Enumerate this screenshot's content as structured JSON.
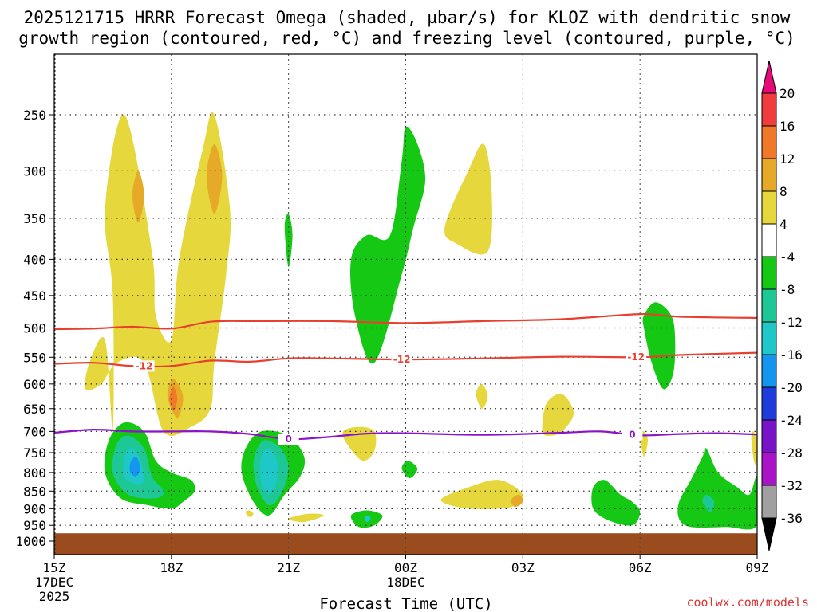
{
  "chart_data": {
    "type": "contour",
    "title_line1": "2025121715 HRRR Forecast Omega (shaded, µbar/s) for KLOZ with dendritic snow",
    "title_line2": "growth region (contoured, red, °C) and freezing level (contoured, purple, °C)",
    "xlabel": "Forecast Time (UTC)",
    "credit": "coolwx.com/models",
    "x_range": [
      15,
      33
    ],
    "y_range_hpa": [
      200,
      1000
    ],
    "y_ticks": [
      250,
      300,
      350,
      400,
      450,
      500,
      550,
      600,
      650,
      700,
      750,
      800,
      850,
      900,
      950,
      1000
    ],
    "x_ticks": [
      {
        "hour": 15,
        "label": "15Z",
        "sub1": "17DEC",
        "sub2": "2025"
      },
      {
        "hour": 18,
        "label": "18Z",
        "sub1": "",
        "sub2": ""
      },
      {
        "hour": 21,
        "label": "21Z",
        "sub1": "",
        "sub2": ""
      },
      {
        "hour": 24,
        "label": "00Z",
        "sub1": "18DEC",
        "sub2": ""
      },
      {
        "hour": 27,
        "label": "03Z",
        "sub1": "",
        "sub2": ""
      },
      {
        "hour": 30,
        "label": "06Z",
        "sub1": "",
        "sub2": ""
      },
      {
        "hour": 33,
        "label": "09Z",
        "sub1": "",
        "sub2": ""
      }
    ],
    "colorbar": {
      "levels": [
        "20",
        "16",
        "12",
        "8",
        "4",
        "-4",
        "-8",
        "-12",
        "-16",
        "-20",
        "-24",
        "-28",
        "-32",
        "-36"
      ],
      "colors": [
        "#e60a78",
        "#f03c3c",
        "#f07828",
        "#e6aa28",
        "#e6d83c",
        "#ffffff",
        "#14c814",
        "#1ec896",
        "#1ec8c8",
        "#1496f0",
        "#1e3cdc",
        "#7814c8",
        "#aa14c8",
        "#a0a0a0",
        "#000000"
      ]
    },
    "contours": {
      "dgz_warm": {
        "name": "DGZ top",
        "label": "",
        "color": "#e84030",
        "hours": [
          15,
          16,
          17,
          18,
          19,
          20,
          22,
          24,
          26,
          28,
          30,
          31,
          33
        ],
        "hpa": [
          502,
          501,
          498,
          501,
          490,
          489,
          489,
          492,
          489,
          486,
          478,
          482,
          484
        ]
      },
      "dgz_cold": {
        "name": "DGZ bottom",
        "label": "-12",
        "color": "#e84030",
        "hours": [
          15,
          16,
          17,
          18,
          19,
          20,
          21,
          22,
          24,
          26,
          28,
          30,
          31,
          33
        ],
        "hpa": [
          562,
          560,
          566,
          566,
          556,
          558,
          552,
          552,
          554,
          552,
          549,
          550,
          546,
          542
        ]
      },
      "freezing_level": {
        "name": "Freezing level",
        "label": "0",
        "color": "#8c14c8",
        "hours": [
          15,
          16,
          17,
          18,
          19,
          20,
          21,
          22,
          23,
          24,
          26,
          28,
          29,
          30,
          31,
          32,
          33
        ],
        "hpa": [
          703,
          696,
          700,
          700,
          700,
          706,
          718,
          713,
          705,
          704,
          708,
          703,
          700,
          709,
          706,
          704,
          707
        ]
      }
    },
    "contour_label_hours": {
      "dgz_cold": [
        17.3,
        23.9,
        29.9
      ],
      "freezing_level": [
        21.0,
        29.8
      ]
    },
    "omega_regions": [
      {
        "level": "4",
        "color": "#e6d83c",
        "pts": [
          [
            16.5,
            700
          ],
          [
            16.5,
            450
          ],
          [
            16.3,
            340
          ],
          [
            16.8,
            250
          ],
          [
            17.5,
            390
          ],
          [
            17.6,
            480
          ],
          [
            18.0,
            520
          ],
          [
            18.2,
            400
          ],
          [
            18.8,
            280
          ],
          [
            19.1,
            250
          ],
          [
            19.5,
            340
          ],
          [
            19.4,
            420
          ],
          [
            19.1,
            560
          ],
          [
            19.0,
            650
          ],
          [
            18.5,
            690
          ],
          [
            17.8,
            700
          ],
          [
            17.3,
            560
          ],
          [
            16.6,
            560
          ],
          [
            16.2,
            600
          ],
          [
            15.8,
            610
          ],
          [
            15.9,
            560
          ],
          [
            16.3,
            520
          ]
        ]
      },
      {
        "level": "8",
        "color": "#e6aa28",
        "pts": [
          [
            17.0,
            325
          ],
          [
            17.15,
            300
          ],
          [
            17.3,
            325
          ],
          [
            17.15,
            355
          ]
        ]
      },
      {
        "level": "8",
        "color": "#e6aa28",
        "pts": [
          [
            18.9,
            305
          ],
          [
            19.1,
            275
          ],
          [
            19.3,
            305
          ],
          [
            19.1,
            345
          ]
        ]
      },
      {
        "level": "8",
        "color": "#e6aa28",
        "pts": [
          [
            17.9,
            625
          ],
          [
            18.05,
            590
          ],
          [
            18.3,
            625
          ],
          [
            18.15,
            670
          ]
        ]
      },
      {
        "level": "12",
        "color": "#f07828",
        "pts": [
          [
            17.95,
            630
          ],
          [
            18.05,
            605
          ],
          [
            18.15,
            630
          ],
          [
            18.05,
            655
          ]
        ]
      },
      {
        "level": "4",
        "color": "#e6d83c",
        "pts": [
          [
            25.0,
            360
          ],
          [
            25.6,
            300
          ],
          [
            26.0,
            275
          ],
          [
            26.2,
            320
          ],
          [
            26.1,
            390
          ],
          [
            25.3,
            380
          ]
        ]
      },
      {
        "level": "4",
        "color": "#e6d83c",
        "pts": [
          [
            22.4,
            700
          ],
          [
            22.8,
            690
          ],
          [
            23.2,
            700
          ],
          [
            23.2,
            745
          ],
          [
            22.9,
            770
          ],
          [
            22.5,
            730
          ]
        ]
      },
      {
        "level": "4",
        "color": "#e6d83c",
        "pts": [
          [
            25.8,
            620
          ],
          [
            25.95,
            600
          ],
          [
            26.1,
            625
          ],
          [
            25.95,
            650
          ]
        ]
      },
      {
        "level": "4",
        "color": "#e6d83c",
        "pts": [
          [
            27.5,
            700
          ],
          [
            27.6,
            640
          ],
          [
            28.0,
            620
          ],
          [
            28.3,
            660
          ],
          [
            28.0,
            700
          ],
          [
            27.7,
            710
          ]
        ]
      },
      {
        "level": "4",
        "color": "#e6d83c",
        "pts": [
          [
            24.9,
            875
          ],
          [
            25.6,
            840
          ],
          [
            26.4,
            820
          ],
          [
            27.0,
            860
          ],
          [
            26.7,
            895
          ],
          [
            25.6,
            900
          ]
        ]
      },
      {
        "level": "8",
        "color": "#e6aa28",
        "pts": [
          [
            26.7,
            875
          ],
          [
            26.9,
            860
          ],
          [
            27.0,
            880
          ],
          [
            26.8,
            895
          ]
        ]
      },
      {
        "level": "4",
        "color": "#e6d83c",
        "pts": [
          [
            21.0,
            930
          ],
          [
            21.5,
            915
          ],
          [
            21.9,
            920
          ],
          [
            21.4,
            940
          ]
        ]
      },
      {
        "level": "4",
        "color": "#e6d83c",
        "pts": [
          [
            19.9,
            910
          ],
          [
            20.0,
            905
          ],
          [
            20.1,
            915
          ],
          [
            20.0,
            925
          ]
        ]
      },
      {
        "level": "4",
        "color": "#e6d83c",
        "pts": [
          [
            30.0,
            710
          ],
          [
            30.1,
            700
          ],
          [
            30.2,
            720
          ],
          [
            30.1,
            760
          ]
        ]
      },
      {
        "level": "4",
        "color": "#e6d83c",
        "pts": [
          [
            32.85,
            720
          ],
          [
            32.9,
            700
          ],
          [
            33.05,
            730
          ],
          [
            32.95,
            780
          ]
        ]
      },
      {
        "level": "-4",
        "color": "#14c814",
        "pts": [
          [
            23.6,
            370
          ],
          [
            23.9,
            290
          ],
          [
            24.0,
            260
          ],
          [
            24.3,
            275
          ],
          [
            24.5,
            310
          ],
          [
            24.2,
            360
          ],
          [
            23.9,
            420
          ],
          [
            23.2,
            560
          ],
          [
            22.7,
            480
          ],
          [
            22.6,
            400
          ],
          [
            23.0,
            370
          ]
        ]
      },
      {
        "level": "-4",
        "color": "#14c814",
        "pts": [
          [
            20.9,
            360
          ],
          [
            21.0,
            345
          ],
          [
            21.1,
            370
          ],
          [
            21.0,
            410
          ]
        ]
      },
      {
        "level": "-4",
        "color": "#14c814",
        "pts": [
          [
            16.4,
            720
          ],
          [
            16.8,
            680
          ],
          [
            17.3,
            700
          ],
          [
            17.6,
            770
          ],
          [
            18.0,
            800
          ],
          [
            18.5,
            820
          ],
          [
            18.6,
            850
          ],
          [
            18.3,
            880
          ],
          [
            18.0,
            900
          ],
          [
            17.4,
            890
          ],
          [
            16.7,
            870
          ],
          [
            16.3,
            800
          ]
        ]
      },
      {
        "level": "-8",
        "color": "#1ec896",
        "pts": [
          [
            16.6,
            730
          ],
          [
            16.9,
            710
          ],
          [
            17.3,
            740
          ],
          [
            17.5,
            810
          ],
          [
            17.8,
            850
          ],
          [
            17.6,
            870
          ],
          [
            16.9,
            860
          ],
          [
            16.5,
            800
          ]
        ]
      },
      {
        "level": "-12",
        "color": "#1ec8c8",
        "pts": [
          [
            16.8,
            760
          ],
          [
            17.0,
            740
          ],
          [
            17.2,
            770
          ],
          [
            17.3,
            820
          ],
          [
            17.1,
            830
          ],
          [
            16.8,
            810
          ]
        ]
      },
      {
        "level": "-16",
        "color": "#1496f0",
        "pts": [
          [
            16.95,
            775
          ],
          [
            17.1,
            760
          ],
          [
            17.2,
            790
          ],
          [
            17.1,
            810
          ],
          [
            16.95,
            800
          ]
        ]
      },
      {
        "level": "-4",
        "color": "#14c814",
        "pts": [
          [
            19.9,
            740
          ],
          [
            20.3,
            700
          ],
          [
            21.0,
            710
          ],
          [
            21.4,
            760
          ],
          [
            21.3,
            810
          ],
          [
            20.9,
            860
          ],
          [
            20.5,
            920
          ],
          [
            20.1,
            880
          ],
          [
            19.8,
            800
          ]
        ]
      },
      {
        "level": "-8",
        "color": "#1ec896",
        "pts": [
          [
            20.2,
            740
          ],
          [
            20.4,
            720
          ],
          [
            20.8,
            740
          ],
          [
            21.0,
            790
          ],
          [
            20.8,
            860
          ],
          [
            20.5,
            890
          ],
          [
            20.2,
            840
          ],
          [
            20.1,
            780
          ]
        ]
      },
      {
        "level": "-12",
        "color": "#1ec8c8",
        "pts": [
          [
            20.3,
            760
          ],
          [
            20.5,
            740
          ],
          [
            20.7,
            770
          ],
          [
            20.7,
            820
          ],
          [
            20.5,
            860
          ],
          [
            20.3,
            820
          ]
        ]
      },
      {
        "level": "-4",
        "color": "#14c814",
        "pts": [
          [
            22.6,
            920
          ],
          [
            23.0,
            905
          ],
          [
            23.4,
            920
          ],
          [
            23.2,
            950
          ],
          [
            22.8,
            955
          ]
        ]
      },
      {
        "level": "-12",
        "color": "#1ec8c8",
        "pts": [
          [
            22.95,
            925
          ],
          [
            23.05,
            920
          ],
          [
            23.1,
            930
          ],
          [
            23.0,
            940
          ]
        ]
      },
      {
        "level": "-4",
        "color": "#14c814",
        "pts": [
          [
            23.9,
            790
          ],
          [
            24.05,
            770
          ],
          [
            24.3,
            790
          ],
          [
            24.1,
            815
          ]
        ]
      },
      {
        "level": "-4",
        "color": "#14c814",
        "pts": [
          [
            28.8,
            840
          ],
          [
            29.1,
            820
          ],
          [
            29.5,
            860
          ],
          [
            29.8,
            880
          ],
          [
            30.0,
            910
          ],
          [
            29.8,
            950
          ],
          [
            29.2,
            935
          ],
          [
            28.8,
            900
          ]
        ]
      },
      {
        "level": "-4",
        "color": "#14c814",
        "pts": [
          [
            30.1,
            480
          ],
          [
            30.4,
            460
          ],
          [
            30.8,
            480
          ],
          [
            30.9,
            520
          ],
          [
            30.85,
            580
          ],
          [
            30.6,
            610
          ],
          [
            30.3,
            560
          ],
          [
            30.1,
            500
          ]
        ]
      },
      {
        "level": "-4",
        "color": "#14c814",
        "pts": [
          [
            31.0,
            880
          ],
          [
            31.3,
            820
          ],
          [
            31.6,
            760
          ],
          [
            31.7,
            740
          ],
          [
            32.0,
            800
          ],
          [
            32.5,
            840
          ],
          [
            32.8,
            860
          ],
          [
            33.0,
            810
          ],
          [
            33.0,
            950
          ],
          [
            32.2,
            955
          ],
          [
            31.3,
            955
          ],
          [
            31.0,
            930
          ]
        ]
      },
      {
        "level": "-8",
        "color": "#1ec896",
        "pts": [
          [
            31.6,
            880
          ],
          [
            31.7,
            860
          ],
          [
            31.9,
            880
          ],
          [
            31.8,
            910
          ]
        ]
      }
    ]
  }
}
